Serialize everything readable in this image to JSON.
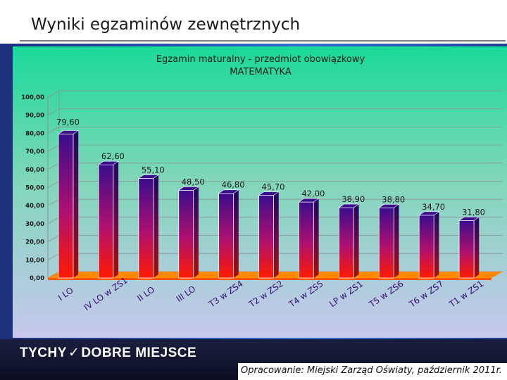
{
  "slide": {
    "title": "Wyniki egzaminów zewnętrznych",
    "brand_left": "TYCHY",
    "brand_right": "DOBRE MIEJSCE",
    "source": "Opracowanie: Miejski Zarząd Oświaty, październik 2011r."
  },
  "colors": {
    "bar_top": "#3a0d8c",
    "bar_mid": "#b0106f",
    "bar_bottom": "#ff1a00",
    "chart_bg_top": "#19d99a",
    "chart_bg_bottom": "#c7c8ee",
    "floor": "#ff8a00"
  },
  "chart_data": {
    "type": "bar",
    "title_line1": "Egzamin maturalny - przedmiot obowiązkowy",
    "title_line2": "MATEMATYKA",
    "categories": [
      "I LO",
      "IV LO w ZS1",
      "II LO",
      "III LO",
      "T3 w ZS4",
      "T2 w ZS2",
      "T4 w ZS5",
      "LP w ZS1",
      "T5 w ZS6",
      "T6 w ZS7",
      "T1 w ZS1"
    ],
    "values": [
      79.6,
      62.6,
      55.1,
      48.5,
      46.8,
      45.7,
      42.0,
      38.9,
      38.8,
      34.7,
      31.8
    ],
    "value_labels": [
      "79,60",
      "62,60",
      "55,10",
      "48,50",
      "46,80",
      "45,70",
      "42,00",
      "38,90",
      "38,80",
      "34,70",
      "31,80"
    ],
    "y_ticks": [
      "0,00",
      "10,00",
      "20,00",
      "30,00",
      "40,00",
      "50,00",
      "60,00",
      "70,00",
      "80,00",
      "90,00",
      "100,00"
    ],
    "ylim": [
      0,
      100
    ],
    "grid": true,
    "legend": "none"
  }
}
